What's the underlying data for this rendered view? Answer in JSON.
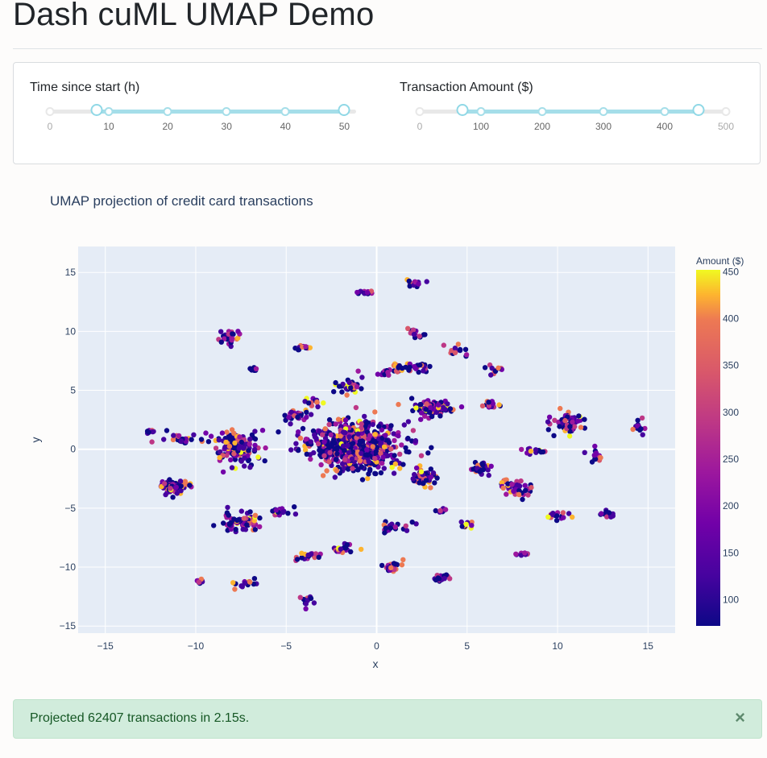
{
  "header": {
    "title": "Dash cuML UMAP Demo"
  },
  "controls": {
    "time_slider": {
      "label": "Time since start (h)",
      "min": 0,
      "max": 52,
      "value": [
        8,
        50
      ],
      "ticks": [
        "0",
        "10",
        "20",
        "30",
        "40",
        "50"
      ]
    },
    "amount_slider": {
      "label": "Transaction Amount ($)",
      "min": 0,
      "max": 500,
      "value": [
        70,
        455
      ],
      "ticks": [
        "0",
        "100",
        "200",
        "300",
        "400",
        "500"
      ]
    }
  },
  "colors": {
    "slider_fill": "#a5dee9",
    "slider_handle": "#90d8e6",
    "plot_bg": "#e5ecf6",
    "alert_bg": "#d1ecdc",
    "alert_text": "#155724"
  },
  "chart_data": {
    "type": "scatter",
    "title": "UMAP projection of credit card transactions",
    "xlabel": "x",
    "ylabel": "y",
    "xlim": [
      -16.5,
      16.5
    ],
    "ylim": [
      -15.6,
      17.2
    ],
    "x_ticks": [
      "−15",
      "−10",
      "−5",
      "0",
      "5",
      "10",
      "15"
    ],
    "y_ticks": [
      "15",
      "10",
      "5",
      "0",
      "−5",
      "−10",
      "−15"
    ],
    "grid": true,
    "colorbar": {
      "title": "Amount ($)",
      "range": [
        72,
        452
      ],
      "ticks": [
        "450",
        "400",
        "350",
        "300",
        "250",
        "200",
        "150",
        "100"
      ],
      "colorscale": "plasma"
    },
    "clusters": [
      {
        "x": -1.5,
        "y": 0.5,
        "sx": 2.3,
        "sy": 1.6,
        "n": 520
      },
      {
        "x": -7.8,
        "y": 0.3,
        "sx": 1.0,
        "sy": 1.1,
        "n": 140
      },
      {
        "x": -11.2,
        "y": -3.2,
        "sx": 0.7,
        "sy": 0.45,
        "n": 80
      },
      {
        "x": -7.5,
        "y": -6.2,
        "sx": 0.8,
        "sy": 0.6,
        "n": 80
      },
      {
        "x": 3.2,
        "y": 3.5,
        "sx": 1.0,
        "sy": 0.55,
        "n": 90
      },
      {
        "x": 2.6,
        "y": -2.4,
        "sx": 0.6,
        "sy": 0.6,
        "n": 55
      },
      {
        "x": 10.7,
        "y": 2.3,
        "sx": 0.8,
        "sy": 0.8,
        "n": 55
      },
      {
        "x": -8.1,
        "y": 9.5,
        "sx": 0.4,
        "sy": 0.5,
        "n": 28
      },
      {
        "x": -1.5,
        "y": 5.4,
        "sx": 0.6,
        "sy": 0.6,
        "n": 38
      },
      {
        "x": 1.8,
        "y": 6.9,
        "sx": 1.0,
        "sy": 0.35,
        "n": 40
      },
      {
        "x": 7.8,
        "y": -3.3,
        "sx": 0.8,
        "sy": 0.6,
        "n": 45
      },
      {
        "x": 5.7,
        "y": -1.7,
        "sx": 0.5,
        "sy": 0.4,
        "n": 28
      },
      {
        "x": -10.8,
        "y": 0.9,
        "sx": 0.9,
        "sy": 0.4,
        "n": 26
      },
      {
        "x": -3.8,
        "y": -9.1,
        "sx": 0.5,
        "sy": 0.4,
        "n": 22
      },
      {
        "x": -1.8,
        "y": -8.5,
        "sx": 0.5,
        "sy": 0.4,
        "n": 20
      },
      {
        "x": 0.8,
        "y": -10.0,
        "sx": 0.5,
        "sy": 0.6,
        "n": 25
      },
      {
        "x": 3.5,
        "y": -10.9,
        "sx": 0.4,
        "sy": 0.3,
        "n": 16
      },
      {
        "x": 1.2,
        "y": -6.6,
        "sx": 0.8,
        "sy": 0.4,
        "n": 22
      },
      {
        "x": 10.1,
        "y": -5.7,
        "sx": 0.6,
        "sy": 0.3,
        "n": 18
      },
      {
        "x": 12.8,
        "y": -5.5,
        "sx": 0.4,
        "sy": 0.3,
        "n": 14
      },
      {
        "x": 14.5,
        "y": 1.8,
        "sx": 0.3,
        "sy": 0.5,
        "n": 12
      },
      {
        "x": 12.2,
        "y": -0.5,
        "sx": 0.5,
        "sy": 0.5,
        "n": 14
      },
      {
        "x": 8.8,
        "y": -0.2,
        "sx": 0.5,
        "sy": 0.3,
        "n": 16
      },
      {
        "x": 6.2,
        "y": 3.8,
        "sx": 0.4,
        "sy": 0.3,
        "n": 16
      },
      {
        "x": 2.2,
        "y": 14.0,
        "sx": 0.4,
        "sy": 0.3,
        "n": 14
      },
      {
        "x": -0.7,
        "y": 13.3,
        "sx": 0.4,
        "sy": 0.15,
        "n": 12
      },
      {
        "x": -4.0,
        "y": 8.6,
        "sx": 0.5,
        "sy": 0.2,
        "n": 12
      },
      {
        "x": -4.4,
        "y": 2.8,
        "sx": 0.6,
        "sy": 0.5,
        "n": 26
      },
      {
        "x": -5.3,
        "y": -5.3,
        "sx": 0.5,
        "sy": 0.4,
        "n": 18
      },
      {
        "x": 2.1,
        "y": 9.8,
        "sx": 0.6,
        "sy": 0.4,
        "n": 16
      },
      {
        "x": 4.4,
        "y": 8.4,
        "sx": 0.6,
        "sy": 0.6,
        "n": 14
      },
      {
        "x": -9.8,
        "y": -11.2,
        "sx": 0.3,
        "sy": 0.2,
        "n": 10
      },
      {
        "x": -7.3,
        "y": -11.3,
        "sx": 0.6,
        "sy": 0.4,
        "n": 16
      },
      {
        "x": -3.9,
        "y": -12.9,
        "sx": 0.3,
        "sy": 0.4,
        "n": 10
      },
      {
        "x": 6.5,
        "y": 6.8,
        "sx": 0.4,
        "sy": 0.3,
        "n": 12
      },
      {
        "x": -3.5,
        "y": 4.0,
        "sx": 0.4,
        "sy": 0.3,
        "n": 12
      },
      {
        "x": -12.5,
        "y": 1.5,
        "sx": 0.3,
        "sy": 0.2,
        "n": 10
      },
      {
        "x": 5.0,
        "y": -6.4,
        "sx": 0.3,
        "sy": 0.3,
        "n": 10
      },
      {
        "x": 3.5,
        "y": -5.2,
        "sx": 0.3,
        "sy": 0.2,
        "n": 8
      },
      {
        "x": 8.0,
        "y": -8.9,
        "sx": 0.3,
        "sy": 0.2,
        "n": 8
      },
      {
        "x": -0.6,
        "y": -0.8,
        "sx": 1.5,
        "sy": 1.0,
        "n": 140
      },
      {
        "x": -6.8,
        "y": 6.8,
        "sx": 0.3,
        "sy": 0.2,
        "n": 8
      },
      {
        "x": 0.5,
        "y": 6.5,
        "sx": 0.4,
        "sy": 0.3,
        "n": 14
      }
    ]
  },
  "status": {
    "message": "Projected 62407 transactions in 2.15s.",
    "close": "×"
  }
}
